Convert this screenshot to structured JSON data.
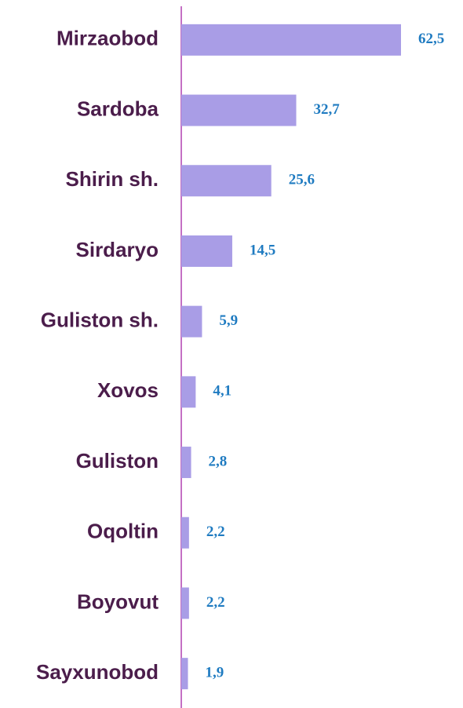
{
  "chart_data": {
    "type": "barh",
    "categories": [
      "Mirzaobod",
      "Sardoba",
      "Shirin sh.",
      "Sirdaryo",
      "Guliston sh.",
      "Xovos",
      "Guliston",
      "Oqoltin",
      "Boyovut",
      "Sayxunobod"
    ],
    "values": [
      62.5,
      32.7,
      25.6,
      14.5,
      5.9,
      4.1,
      2.8,
      2.2,
      2.2,
      1.9
    ],
    "value_labels": [
      "62,5",
      "32,7",
      "25,6",
      "14,5",
      "5,9",
      "4,1",
      "2,8",
      "2,2",
      "2,2",
      "1,9"
    ],
    "color": "#a99de6"
  }
}
